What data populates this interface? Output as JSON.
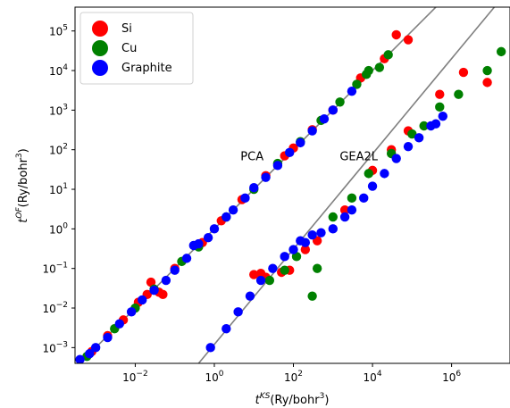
{
  "chart_data": {
    "type": "scatter",
    "x_scale": "log",
    "y_scale": "log",
    "xlim": [
      0.0003,
      30000000.0
    ],
    "ylim": [
      0.0004,
      400000.0
    ],
    "xlabel_main": "t",
    "xlabel_sup": "KS",
    "xlabel_unit": "(Ry/bohr",
    "xlabel_unit_sup": "3",
    "xlabel_close": ")",
    "ylabel_main": "t",
    "ylabel_sup": "OF",
    "ylabel_unit": "(Ry/bohr",
    "ylabel_unit_sup": "3",
    "ylabel_close": ")",
    "x_ticks": [
      {
        "base": "10",
        "exp": "−2",
        "value": 0.01
      },
      {
        "base": "10",
        "exp": "0",
        "value": 1
      },
      {
        "base": "10",
        "exp": "2",
        "value": 100
      },
      {
        "base": "10",
        "exp": "4",
        "value": 10000
      },
      {
        "base": "10",
        "exp": "6",
        "value": 1000000
      }
    ],
    "y_ticks": [
      {
        "base": "10",
        "exp": "−3",
        "value": 0.001
      },
      {
        "base": "10",
        "exp": "−2",
        "value": 0.01
      },
      {
        "base": "10",
        "exp": "−1",
        "value": 0.1
      },
      {
        "base": "10",
        "exp": "0",
        "value": 1
      },
      {
        "base": "10",
        "exp": "1",
        "value": 10
      },
      {
        "base": "10",
        "exp": "2",
        "value": 100
      },
      {
        "base": "10",
        "exp": "3",
        "value": 1000
      },
      {
        "base": "10",
        "exp": "4",
        "value": 10000
      },
      {
        "base": "10",
        "exp": "5",
        "value": 100000
      }
    ],
    "legend_position": "top-left",
    "annotations": [
      {
        "text": "PCA",
        "x": 9,
        "y": 70
      },
      {
        "text": "GEA2L",
        "x": 4500,
        "y": 70
      }
    ],
    "reference_lines": [
      {
        "x": [
          0.0003,
          500000
        ],
        "y": [
          0.0003,
          500000
        ]
      },
      {
        "x": [
          0.4,
          30000000
        ],
        "y": [
          0.0004,
          1200000
        ]
      }
    ],
    "series": [
      {
        "name": "Si",
        "color": "#ff0000",
        "points": [
          [
            0.0008,
            0.0008
          ],
          [
            0.002,
            0.002
          ],
          [
            0.005,
            0.005
          ],
          [
            0.012,
            0.014
          ],
          [
            0.02,
            0.022
          ],
          [
            0.025,
            0.045
          ],
          [
            0.04,
            0.025
          ],
          [
            0.05,
            0.022
          ],
          [
            0.1,
            0.1
          ],
          [
            0.5,
            0.45
          ],
          [
            1.5,
            1.6
          ],
          [
            5,
            5.5
          ],
          [
            20,
            22
          ],
          [
            60,
            70
          ],
          [
            100,
            110
          ],
          [
            300,
            320
          ],
          [
            1000,
            1000
          ],
          [
            5000,
            6500
          ],
          [
            20000,
            20000
          ],
          [
            40000,
            80000
          ],
          [
            80000,
            60000
          ],
          [
            10,
            0.07
          ],
          [
            15,
            0.075
          ],
          [
            20,
            0.06
          ],
          [
            50,
            0.08
          ],
          [
            80,
            0.09
          ],
          [
            200,
            0.3
          ],
          [
            400,
            0.5
          ],
          [
            2000,
            3
          ],
          [
            10000,
            30
          ],
          [
            30000,
            100
          ],
          [
            80000,
            300
          ],
          [
            500000,
            2500
          ],
          [
            2000000,
            9000
          ],
          [
            8000000,
            5000
          ]
        ]
      },
      {
        "name": "Cu",
        "color": "#008000",
        "points": [
          [
            0.0006,
            0.0006
          ],
          [
            0.003,
            0.003
          ],
          [
            0.01,
            0.01
          ],
          [
            0.03,
            0.03
          ],
          [
            0.15,
            0.15
          ],
          [
            0.4,
            0.35
          ],
          [
            2,
            2
          ],
          [
            10,
            10
          ],
          [
            40,
            45
          ],
          [
            150,
            160
          ],
          [
            500,
            550
          ],
          [
            1500,
            1600
          ],
          [
            4000,
            4500
          ],
          [
            7000,
            8000
          ],
          [
            8000,
            10000
          ],
          [
            15000,
            12000
          ],
          [
            25000,
            25000
          ],
          [
            25,
            0.05
          ],
          [
            60,
            0.09
          ],
          [
            120,
            0.2
          ],
          [
            300,
            0.02
          ],
          [
            400,
            0.1
          ],
          [
            1000,
            2
          ],
          [
            3000,
            6
          ],
          [
            8000,
            25
          ],
          [
            30000,
            80
          ],
          [
            100000,
            250
          ],
          [
            200000,
            400
          ],
          [
            500000,
            1200
          ],
          [
            1500000,
            2500
          ],
          [
            8000000,
            10000
          ],
          [
            18000000,
            30000
          ]
        ]
      },
      {
        "name": "Graphite",
        "color": "#0000ff",
        "points": [
          [
            0.0004,
            0.0005
          ],
          [
            0.0007,
            0.0007
          ],
          [
            0.001,
            0.001
          ],
          [
            0.002,
            0.0018
          ],
          [
            0.004,
            0.004
          ],
          [
            0.008,
            0.008
          ],
          [
            0.015,
            0.016
          ],
          [
            0.03,
            0.028
          ],
          [
            0.06,
            0.05
          ],
          [
            0.1,
            0.09
          ],
          [
            0.2,
            0.18
          ],
          [
            0.3,
            0.38
          ],
          [
            0.4,
            0.42
          ],
          [
            0.7,
            0.6
          ],
          [
            1,
            1
          ],
          [
            2,
            2
          ],
          [
            3,
            3
          ],
          [
            6,
            6
          ],
          [
            10,
            11
          ],
          [
            20,
            20
          ],
          [
            40,
            40
          ],
          [
            80,
            85
          ],
          [
            150,
            150
          ],
          [
            300,
            300
          ],
          [
            600,
            600
          ],
          [
            1000,
            1000
          ],
          [
            3000,
            3000
          ],
          [
            0.8,
            0.001
          ],
          [
            2,
            0.003
          ],
          [
            4,
            0.008
          ],
          [
            8,
            0.02
          ],
          [
            15,
            0.05
          ],
          [
            30,
            0.1
          ],
          [
            60,
            0.2
          ],
          [
            100,
            0.3
          ],
          [
            150,
            0.5
          ],
          [
            200,
            0.45
          ],
          [
            300,
            0.7
          ],
          [
            500,
            0.8
          ],
          [
            1000,
            1
          ],
          [
            2000,
            2
          ],
          [
            3000,
            3
          ],
          [
            6000,
            6
          ],
          [
            10000,
            12
          ],
          [
            20000,
            25
          ],
          [
            40000,
            60
          ],
          [
            80000,
            120
          ],
          [
            150000,
            200
          ],
          [
            300000,
            400
          ],
          [
            400000,
            450
          ],
          [
            600000,
            700
          ]
        ]
      }
    ]
  }
}
